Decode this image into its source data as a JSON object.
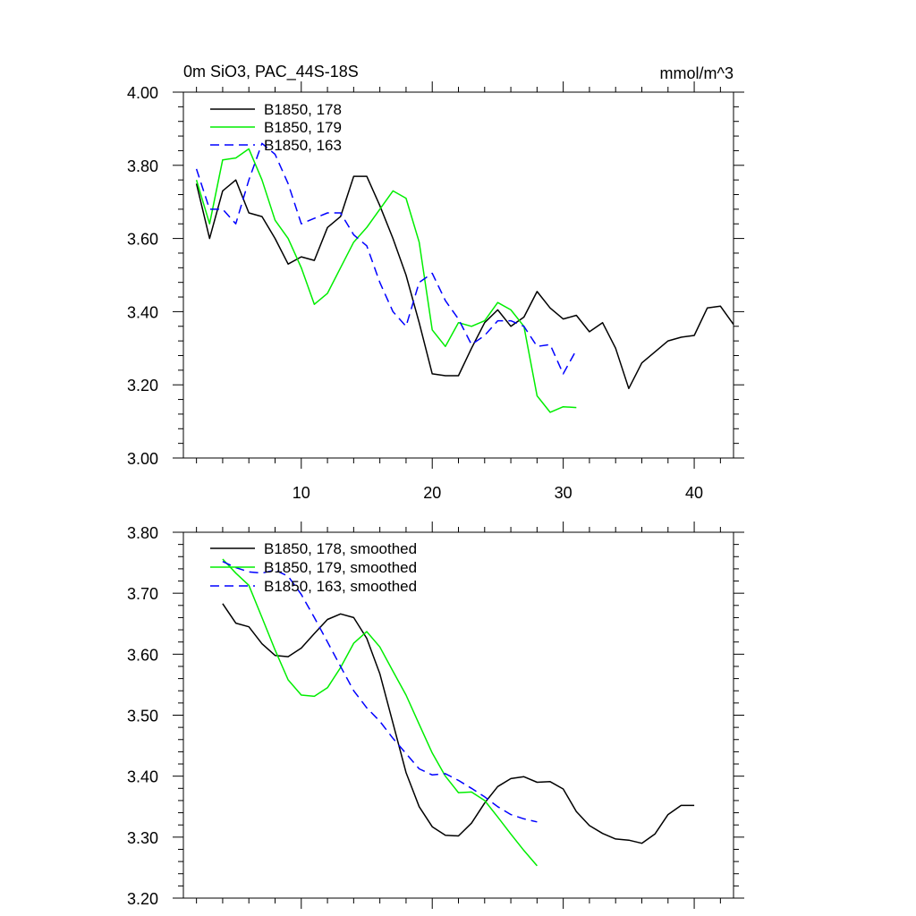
{
  "header": {
    "title": "0m SiO3, PAC_44S-18S",
    "units": "mmol/m^3"
  },
  "colors": {
    "series_178": "#000000",
    "series_179": "#00ee00",
    "series_163": "#0000ff"
  },
  "chart_data": [
    {
      "type": "line",
      "panel": "top",
      "title": "0m SiO3, PAC_44S-18S",
      "units_label": "mmol/m^3",
      "xlim": [
        1,
        43
      ],
      "ylim": [
        3.0,
        4.0
      ],
      "xticks": [
        10,
        20,
        30,
        40
      ],
      "xtick_labels": [
        "10",
        "20",
        "30",
        "40"
      ],
      "yticks": [
        3.0,
        3.2,
        3.4,
        3.6,
        3.8,
        4.0
      ],
      "ytick_labels": [
        "3.00",
        "3.20",
        "3.40",
        "3.60",
        "3.80",
        "4.00"
      ],
      "legend_position": "top-left",
      "series": [
        {
          "name": "B1850, 178",
          "color": "#000000",
          "dash": "solid",
          "x": [
            2,
            3,
            4,
            5,
            6,
            7,
            8,
            9,
            10,
            11,
            12,
            13,
            14,
            15,
            16,
            17,
            18,
            19,
            20,
            21,
            22,
            23,
            24,
            25,
            26,
            27,
            28,
            29,
            30,
            31,
            32,
            33,
            34,
            35,
            36,
            37,
            38,
            39,
            40,
            41,
            42,
            43
          ],
          "y": [
            3.75,
            3.6,
            3.73,
            3.76,
            3.67,
            3.66,
            3.6,
            3.53,
            3.55,
            3.54,
            3.63,
            3.66,
            3.77,
            3.77,
            3.69,
            3.6,
            3.5,
            3.37,
            3.23,
            3.225,
            3.225,
            3.3,
            3.37,
            3.405,
            3.36,
            3.385,
            3.455,
            3.41,
            3.38,
            3.39,
            3.345,
            3.37,
            3.3,
            3.19,
            3.26,
            3.29,
            3.32,
            3.33,
            3.335,
            3.41,
            3.415,
            3.365
          ]
        },
        {
          "name": "B1850, 179",
          "color": "#00ee00",
          "dash": "solid",
          "x": [
            2,
            3,
            4,
            5,
            6,
            7,
            8,
            9,
            10,
            11,
            12,
            13,
            14,
            15,
            16,
            17,
            18,
            19,
            20,
            21,
            22,
            23,
            24,
            25,
            26,
            27,
            28,
            29,
            30,
            31
          ],
          "y": [
            3.76,
            3.64,
            3.815,
            3.82,
            3.845,
            3.76,
            3.65,
            3.6,
            3.52,
            3.42,
            3.45,
            3.52,
            3.59,
            3.63,
            3.68,
            3.73,
            3.71,
            3.59,
            3.35,
            3.305,
            3.37,
            3.36,
            3.375,
            3.425,
            3.405,
            3.36,
            3.17,
            3.125,
            3.14,
            3.138
          ]
        },
        {
          "name": "B1850, 163",
          "color": "#0000ff",
          "dash": "dashed",
          "x": [
            2,
            3,
            4,
            5,
            6,
            7,
            8,
            9,
            10,
            11,
            12,
            13,
            14,
            15,
            16,
            17,
            18,
            19,
            20,
            21,
            22,
            23,
            24,
            25,
            26,
            27,
            28,
            29,
            30,
            31
          ],
          "y": [
            3.79,
            3.68,
            3.68,
            3.64,
            3.76,
            3.86,
            3.83,
            3.75,
            3.64,
            3.655,
            3.67,
            3.67,
            3.61,
            3.58,
            3.48,
            3.4,
            3.36,
            3.48,
            3.505,
            3.43,
            3.38,
            3.31,
            3.335,
            3.375,
            3.375,
            3.36,
            3.305,
            3.31,
            3.23,
            3.295
          ]
        }
      ]
    },
    {
      "type": "line",
      "panel": "bottom",
      "xlim": [
        1,
        43
      ],
      "ylim": [
        3.2,
        3.8
      ],
      "xticks": [
        10,
        20,
        30,
        40
      ],
      "xtick_labels": [],
      "yticks": [
        3.2,
        3.3,
        3.4,
        3.5,
        3.6,
        3.7,
        3.8
      ],
      "ytick_labels": [
        "3.20",
        "3.30",
        "3.40",
        "3.50",
        "3.60",
        "3.70",
        "3.80"
      ],
      "legend_position": "top-left",
      "series": [
        {
          "name": "B1850, 178, smoothed",
          "color": "#000000",
          "dash": "solid",
          "x": [
            4,
            5,
            6,
            7,
            8,
            9,
            10,
            11,
            12,
            13,
            14,
            15,
            16,
            17,
            18,
            19,
            20,
            21,
            22,
            23,
            24,
            25,
            26,
            27,
            28,
            29,
            30,
            31,
            32,
            33,
            34,
            35,
            36,
            37,
            38,
            39,
            40
          ],
          "y": [
            3.683,
            3.651,
            3.645,
            3.617,
            3.598,
            3.596,
            3.61,
            3.634,
            3.657,
            3.666,
            3.66,
            3.626,
            3.568,
            3.487,
            3.406,
            3.35,
            3.317,
            3.303,
            3.302,
            3.323,
            3.356,
            3.383,
            3.396,
            3.399,
            3.39,
            3.391,
            3.379,
            3.342,
            3.319,
            3.306,
            3.297,
            3.295,
            3.29,
            3.305,
            3.337,
            3.352,
            3.352
          ]
        },
        {
          "name": "B1850, 179, smoothed",
          "color": "#00ee00",
          "dash": "solid",
          "x": [
            4,
            5,
            6,
            7,
            8,
            9,
            10,
            11,
            12,
            13,
            14,
            15,
            16,
            17,
            18,
            19,
            20,
            21,
            22,
            23,
            24,
            25,
            26,
            27,
            28
          ],
          "y": [
            3.756,
            3.733,
            3.713,
            3.66,
            3.607,
            3.558,
            3.533,
            3.531,
            3.545,
            3.578,
            3.618,
            3.637,
            3.612,
            3.572,
            3.533,
            3.485,
            3.438,
            3.4,
            3.373,
            3.374,
            3.36,
            3.333,
            3.305,
            3.278,
            3.253
          ]
        },
        {
          "name": "B1850, 163, smoothed",
          "color": "#0000ff",
          "dash": "dashed",
          "x": [
            4,
            5,
            6,
            7,
            8,
            9,
            10,
            11,
            12,
            13,
            14,
            15,
            16,
            17,
            18,
            19,
            20,
            21,
            22,
            23,
            24,
            25,
            26,
            27,
            28
          ],
          "y": [
            3.752,
            3.742,
            3.735,
            3.733,
            3.738,
            3.728,
            3.698,
            3.66,
            3.62,
            3.58,
            3.54,
            3.512,
            3.49,
            3.462,
            3.437,
            3.412,
            3.402,
            3.404,
            3.393,
            3.38,
            3.366,
            3.35,
            3.337,
            3.33,
            3.325
          ]
        }
      ]
    }
  ]
}
